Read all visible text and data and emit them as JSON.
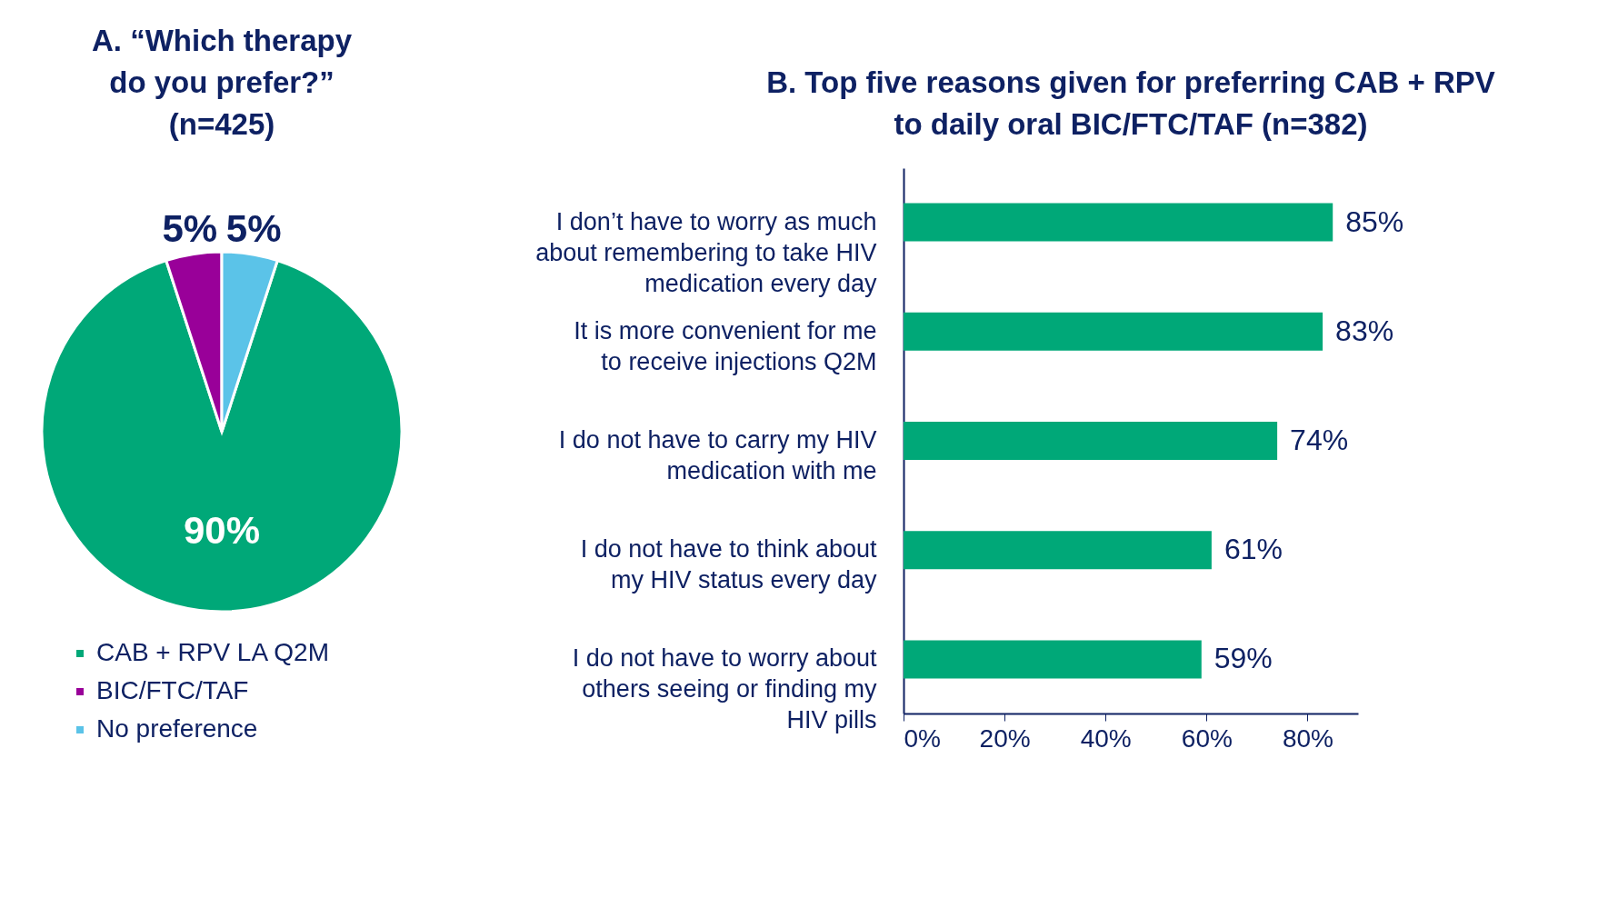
{
  "chart_data": [
    {
      "type": "pie",
      "title": "A. “Which therapy do you prefer?” (n=425)",
      "categories": [
        "CAB + RPV LA Q2M",
        "BIC/FTC/TAF",
        "No preference"
      ],
      "values": [
        90,
        5,
        5
      ],
      "colors": [
        "#00a878",
        "#990099",
        "#5bc3e8"
      ],
      "value_labels": [
        "90%",
        "5%",
        "5%"
      ],
      "legend": "bottom left"
    },
    {
      "type": "bar",
      "orientation": "horizontal",
      "title": "B. Top five reasons given for preferring CAB + RPV to daily oral BIC/FTC/TAF (n=382)",
      "categories": [
        "I don’t have to worry as much about remembering to take HIV medication every day",
        "It is more convenient for me to receive injections Q2M",
        "I do not have to carry my HIV medication with me",
        "I do not have to think about my HIV status every day",
        "I do not have to worry about others seeing or finding my HIV pills"
      ],
      "series": [
        {
          "color": "#00a878",
          "values": [
            85,
            83,
            74,
            61,
            59
          ]
        }
      ],
      "value_labels": [
        "85%",
        "83%",
        "74%",
        "61%",
        "59%"
      ],
      "xlim": [
        0,
        90
      ],
      "xticks": [
        {
          "value": 0,
          "label": "0%"
        },
        {
          "value": 20,
          "label": "20%"
        },
        {
          "value": 40,
          "label": "40%"
        },
        {
          "value": 60,
          "label": "60%"
        },
        {
          "value": 80,
          "label": "80%"
        }
      ],
      "grid": false
    }
  ]
}
